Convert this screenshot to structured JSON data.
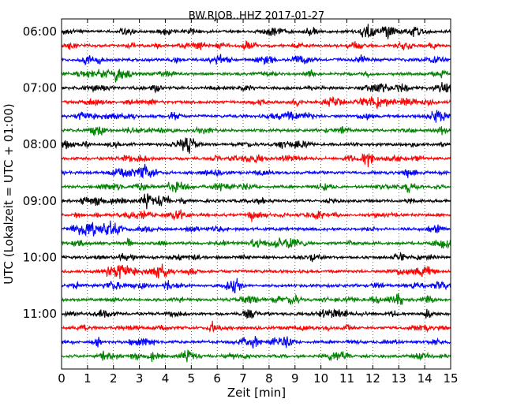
{
  "chart_data": {
    "type": "line",
    "title": "BW.RJOB..HHZ 2017-01-27",
    "xlabel": "Zeit  [min]",
    "ylabel": "UTC (Lokalzeit = UTC + 01:00)",
    "xlim": [
      0,
      15
    ],
    "x_ticks": [
      "0",
      "1",
      "2",
      "3",
      "4",
      "5",
      "6",
      "7",
      "8",
      "9",
      "10",
      "11",
      "12",
      "13",
      "14",
      "15"
    ],
    "y_ticks": [
      "06:00",
      "07:00",
      "08:00",
      "09:00",
      "10:00",
      "11:00"
    ],
    "grid": "vertical dotted at each minute",
    "trace_colors": [
      "#000000",
      "#ff0000",
      "#0000ff",
      "#008000"
    ],
    "trace_count": 24,
    "trace_interval_minutes": 15,
    "first_trace_time": "06:00",
    "series": [
      {
        "start": "06:00",
        "color": "#000000"
      },
      {
        "start": "06:15",
        "color": "#ff0000"
      },
      {
        "start": "06:30",
        "color": "#0000ff"
      },
      {
        "start": "06:45",
        "color": "#008000"
      },
      {
        "start": "07:00",
        "color": "#000000"
      },
      {
        "start": "07:15",
        "color": "#ff0000"
      },
      {
        "start": "07:30",
        "color": "#0000ff"
      },
      {
        "start": "07:45",
        "color": "#008000"
      },
      {
        "start": "08:00",
        "color": "#000000"
      },
      {
        "start": "08:15",
        "color": "#ff0000"
      },
      {
        "start": "08:30",
        "color": "#0000ff"
      },
      {
        "start": "08:45",
        "color": "#008000"
      },
      {
        "start": "09:00",
        "color": "#000000"
      },
      {
        "start": "09:15",
        "color": "#ff0000"
      },
      {
        "start": "09:30",
        "color": "#0000ff"
      },
      {
        "start": "09:45",
        "color": "#008000"
      },
      {
        "start": "10:00",
        "color": "#000000"
      },
      {
        "start": "10:15",
        "color": "#ff0000"
      },
      {
        "start": "10:30",
        "color": "#0000ff"
      },
      {
        "start": "10:45",
        "color": "#008000"
      },
      {
        "start": "11:00",
        "color": "#000000"
      },
      {
        "start": "11:15",
        "color": "#ff0000"
      },
      {
        "start": "11:30",
        "color": "#0000ff"
      },
      {
        "start": "11:45",
        "color": "#008000"
      }
    ]
  }
}
